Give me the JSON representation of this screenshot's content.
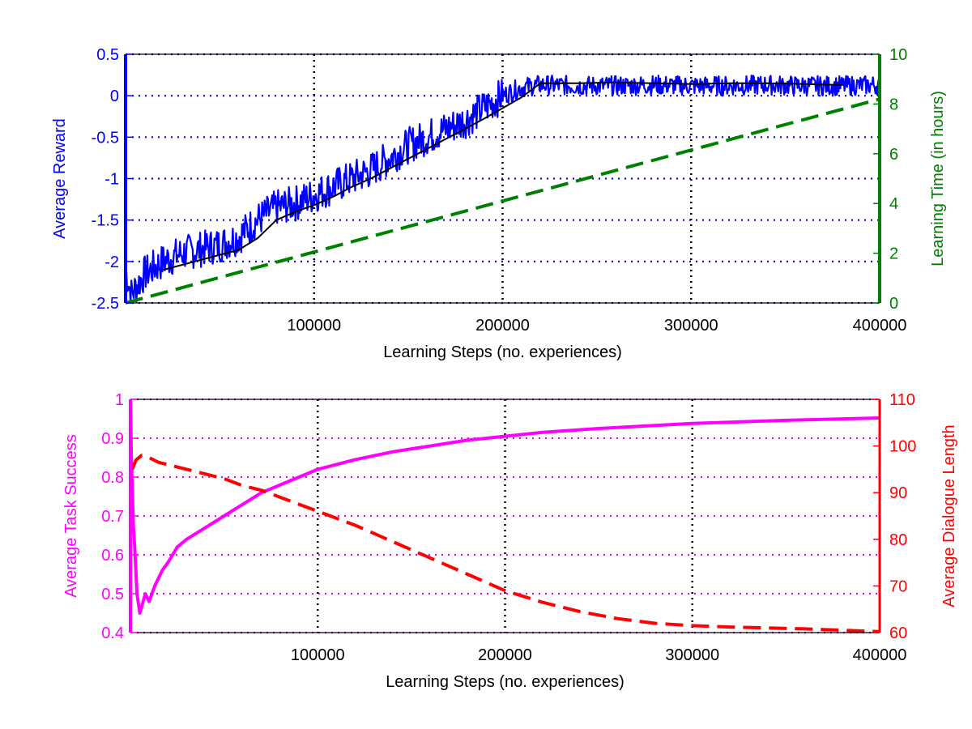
{
  "chart_data": [
    {
      "type": "line",
      "xlabel": "Learning Steps (no. experiences)",
      "ylabel_left": "Average Reward",
      "ylabel_right": "Learning Time (in hours)",
      "xlim": [
        0,
        400000
      ],
      "ylim_left": [
        -2.5,
        0.5
      ],
      "ylim_right": [
        0,
        10
      ],
      "x_ticks": [
        100000,
        200000,
        300000,
        400000
      ],
      "y_ticks_left": [
        -2.5,
        -2,
        -1.5,
        -1,
        -0.5,
        0,
        0.5
      ],
      "y_ticks_right": [
        0,
        2,
        4,
        6,
        8,
        10
      ],
      "grid": true,
      "series": [
        {
          "axis": "left",
          "style": "noisy band",
          "color": "#0000ff",
          "x": [
            0,
            3000,
            10000,
            20000,
            30000,
            40000,
            50000,
            60000,
            70000,
            80000,
            90000,
            100000,
            110000,
            120000,
            130000,
            140000,
            150000,
            160000,
            170000,
            180000,
            190000,
            200000,
            210000,
            220000,
            240000,
            260000,
            280000,
            300000,
            320000,
            340000,
            360000,
            380000,
            400000
          ],
          "values": [
            -2.1,
            -2.4,
            -2.15,
            -2.0,
            -1.9,
            -1.85,
            -1.8,
            -1.7,
            -1.5,
            -1.35,
            -1.3,
            -1.2,
            -1.1,
            -1.0,
            -0.9,
            -0.75,
            -0.6,
            -0.5,
            -0.4,
            -0.3,
            -0.15,
            0.0,
            0.1,
            0.13,
            0.12,
            0.12,
            0.13,
            0.12,
            0.12,
            0.13,
            0.12,
            0.12,
            0.13
          ]
        },
        {
          "axis": "left",
          "style": "solid",
          "color": "#000000",
          "x": [
            20000,
            40000,
            60000,
            70000,
            80000,
            90000,
            100000,
            110000,
            120000,
            130000,
            140000,
            150000,
            160000,
            170000,
            180000,
            190000,
            200000,
            210000,
            220000,
            240000,
            260000,
            280000,
            300000,
            320000,
            340000,
            360000,
            380000
          ],
          "values": [
            -2.1,
            -1.98,
            -1.86,
            -1.72,
            -1.5,
            -1.4,
            -1.32,
            -1.22,
            -1.1,
            -1.0,
            -0.88,
            -0.76,
            -0.64,
            -0.52,
            -0.4,
            -0.28,
            -0.15,
            -0.02,
            0.15,
            0.15,
            0.16,
            0.15,
            0.14,
            0.15,
            0.15,
            0.14,
            0.13
          ]
        },
        {
          "axis": "right",
          "style": "dashed",
          "color": "#008000",
          "x": [
            0,
            400000
          ],
          "values": [
            0,
            8.2
          ]
        }
      ]
    },
    {
      "type": "line",
      "xlabel": "Learning Steps (no. experiences)",
      "ylabel_left": "Average Task Success",
      "ylabel_right": "Average Dialogue Length",
      "xlim": [
        0,
        400000
      ],
      "ylim_left": [
        0.4,
        1
      ],
      "ylim_right": [
        60,
        110
      ],
      "x_ticks": [
        100000,
        200000,
        300000,
        400000
      ],
      "y_ticks_left": [
        0.4,
        0.5,
        0.6,
        0.7,
        0.8,
        0.9,
        1
      ],
      "y_ticks_right": [
        60,
        70,
        80,
        90,
        100,
        110
      ],
      "grid": true,
      "series": [
        {
          "axis": "left",
          "style": "solid",
          "color": "#ff00ff",
          "x": [
            0,
            500,
            1500,
            2500,
            3500,
            5000,
            8000,
            10000,
            13000,
            17000,
            20000,
            25000,
            30000,
            40000,
            50000,
            60000,
            70000,
            80000,
            90000,
            100000,
            120000,
            140000,
            160000,
            180000,
            200000,
            220000,
            250000,
            300000,
            350000,
            400000
          ],
          "values": [
            1.0,
            0.85,
            0.68,
            0.6,
            0.5,
            0.45,
            0.5,
            0.48,
            0.52,
            0.56,
            0.58,
            0.62,
            0.64,
            0.67,
            0.7,
            0.73,
            0.76,
            0.78,
            0.8,
            0.82,
            0.845,
            0.865,
            0.88,
            0.895,
            0.905,
            0.915,
            0.925,
            0.938,
            0.946,
            0.952
          ]
        },
        {
          "axis": "right",
          "style": "dashed",
          "color": "#ff0000",
          "x": [
            1000,
            3000,
            6000,
            10000,
            15000,
            20000,
            30000,
            40000,
            50000,
            60000,
            70000,
            80000,
            90000,
            100000,
            120000,
            140000,
            160000,
            180000,
            200000,
            220000,
            240000,
            260000,
            280000,
            300000,
            320000,
            340000,
            360000,
            380000,
            400000
          ],
          "values": [
            95,
            97,
            98,
            97.5,
            96.5,
            96,
            95,
            94,
            93,
            91.5,
            90.5,
            89,
            87.5,
            86,
            83,
            79.5,
            76,
            72.5,
            69,
            66.5,
            64.5,
            63,
            62,
            61.5,
            61.2,
            61,
            60.8,
            60.5,
            60.2
          ]
        }
      ]
    }
  ]
}
